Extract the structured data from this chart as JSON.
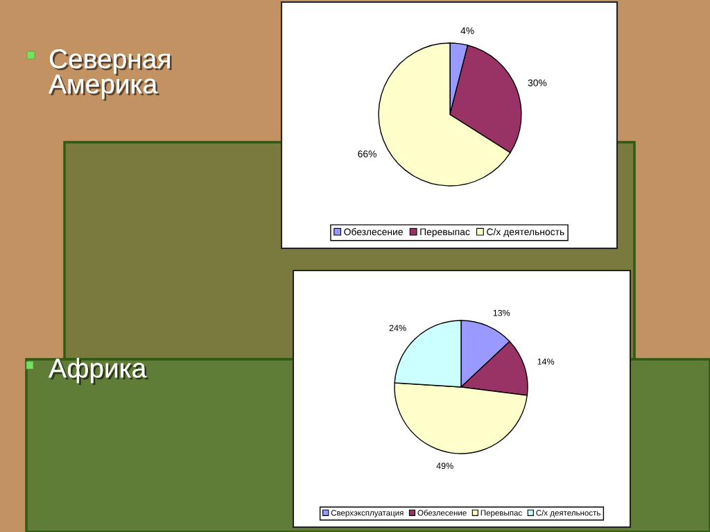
{
  "chart_data": [
    {
      "type": "pie",
      "title": "Северная Америка",
      "categories": [
        "Обезлесение",
        "Перевыпас",
        "С/х деятельность"
      ],
      "values": [
        4,
        30,
        66
      ],
      "colors": [
        "#9999ff",
        "#993366",
        "#ffffcc"
      ],
      "value_labels": [
        "4%",
        "30%",
        "66%"
      ],
      "legend": "bottom"
    },
    {
      "type": "pie",
      "title": "Африка",
      "categories": [
        "Сверхэксплуатация",
        "Обезлесение",
        "Перевыпас",
        "С/х деятельность"
      ],
      "values": [
        13,
        14,
        49,
        24
      ],
      "colors": [
        "#9999ff",
        "#993366",
        "#ffffcc",
        "#ccffff"
      ],
      "value_labels": [
        "13%",
        "14%",
        "49%",
        "24%"
      ],
      "legend": "bottom"
    }
  ]
}
